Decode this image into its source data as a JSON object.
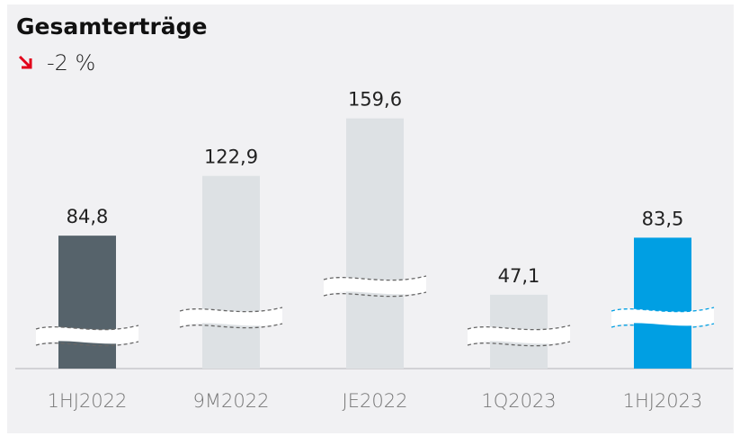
{
  "chart_data": {
    "type": "bar",
    "title": "Gesamterträge",
    "subtitle": "-2 %",
    "categories": [
      "1HJ2022",
      "9M2022",
      "JE2022",
      "1Q2023",
      "1HJ2023"
    ],
    "values": [
      84.8,
      122.9,
      159.6,
      47.1,
      83.5
    ],
    "value_labels": [
      "84,8",
      "122,9",
      "159,6",
      "47,1",
      "83,5"
    ],
    "colors": [
      "#56636b",
      "#dde1e4",
      "#dde1e4",
      "#dde1e4",
      "#009fe3"
    ],
    "ylim": [
      0,
      160
    ]
  }
}
